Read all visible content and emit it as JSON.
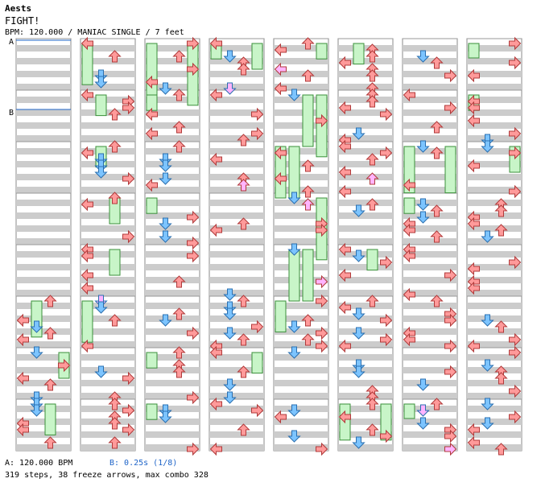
{
  "header": {
    "title": "Aests",
    "song": "FIGHT!",
    "info": "BPM: 120.000 / MANIAC SINGLE / 7 feet"
  },
  "markers": {
    "a": "A",
    "b": "B"
  },
  "footer": {
    "bpm_a": "A: 120.000 BPM",
    "bpm_b": "B: 0.25s (1/8)",
    "stats": "319 steps, 38 freeze arrows, max combo 328"
  },
  "colors": {
    "left": "#ff9a9a",
    "down": "#7cc4ff",
    "up": "#ff9a9a",
    "right": "#ff9a9a",
    "freeze": "#c8f5c8",
    "shock": "#ffb4ff",
    "stripe": "#cccccc",
    "marker": "#1e64c8"
  },
  "chart_data": {
    "type": "step-chart",
    "measures_per_column": 8,
    "columns": 8,
    "lanes": [
      "left",
      "down",
      "up",
      "right"
    ],
    "freezes": [
      {
        "col": 0,
        "measure": 5,
        "lane": 1,
        "len": 0.7
      },
      {
        "col": 0,
        "measure": 6,
        "lane": 3,
        "len": 0.5
      },
      {
        "col": 0,
        "measure": 7,
        "lane": 2,
        "len": 0.6
      },
      {
        "col": 1,
        "measure": 0,
        "lane": 0,
        "len": 0.8
      },
      {
        "col": 1,
        "measure": 1,
        "lane": 1,
        "len": 0.4
      },
      {
        "col": 1,
        "measure": 2,
        "lane": 1,
        "len": 0.4
      },
      {
        "col": 1,
        "measure": 3,
        "lane": 2,
        "len": 0.5
      },
      {
        "col": 1,
        "measure": 4,
        "lane": 2,
        "len": 0.5
      },
      {
        "col": 1,
        "measure": 5,
        "lane": 0,
        "len": 0.8
      },
      {
        "col": 2,
        "measure": 0,
        "lane": 0,
        "len": 1.2
      },
      {
        "col": 2,
        "measure": 0,
        "lane": 3,
        "len": 1.2
      },
      {
        "col": 2,
        "measure": 1,
        "lane": 0,
        "len": 0.3
      },
      {
        "col": 2,
        "measure": 3,
        "lane": 0,
        "len": 0.3
      },
      {
        "col": 2,
        "measure": 6,
        "lane": 0,
        "len": 0.3
      },
      {
        "col": 3,
        "measure": 0,
        "lane": 0,
        "len": 0.3
      },
      {
        "col": 3,
        "measure": 0,
        "lane": 3,
        "len": 0.5
      },
      {
        "col": 3,
        "measure": 6,
        "lane": 3,
        "len": 0.4
      },
      {
        "col": 4,
        "measure": 0,
        "lane": 3,
        "len": 0.3
      },
      {
        "col": 4,
        "measure": 1,
        "lane": 3,
        "len": 1.2
      },
      {
        "col": 4,
        "measure": 1,
        "lane": 2,
        "len": 1.0
      },
      {
        "col": 4,
        "measure": 2,
        "lane": 1,
        "len": 1.0
      },
      {
        "col": 4,
        "measure": 2,
        "lane": 0,
        "len": 1.0
      },
      {
        "col": 4,
        "measure": 3,
        "lane": 3,
        "len": 1.2
      },
      {
        "col": 4,
        "measure": 4,
        "lane": 1,
        "len": 1.0
      },
      {
        "col": 4,
        "measure": 4,
        "lane": 2,
        "len": 1.0
      },
      {
        "col": 4,
        "measure": 5,
        "lane": 0,
        "len": 0.6
      },
      {
        "col": 5,
        "measure": 0,
        "lane": 1,
        "len": 0.4
      },
      {
        "col": 5,
        "measure": 4,
        "lane": 2,
        "len": 0.4
      },
      {
        "col": 5,
        "measure": 7,
        "lane": 0,
        "len": 0.7
      },
      {
        "col": 5,
        "measure": 7,
        "lane": 3,
        "len": 0.7
      },
      {
        "col": 6,
        "measure": 2,
        "lane": 0,
        "len": 0.9
      },
      {
        "col": 6,
        "measure": 2,
        "lane": 3,
        "len": 0.9
      },
      {
        "col": 6,
        "measure": 3,
        "lane": 0,
        "len": 0.3
      },
      {
        "col": 6,
        "measure": 7,
        "lane": 0,
        "len": 0.2
      },
      {
        "col": 7,
        "measure": 0,
        "lane": 0,
        "len": 0.2
      },
      {
        "col": 7,
        "measure": 1,
        "lane": 0,
        "len": 0.3
      },
      {
        "col": 7,
        "measure": 2,
        "lane": 3,
        "len": 0.5
      },
      {
        "col": 2,
        "measure": 7,
        "lane": 0,
        "len": 0.3
      }
    ]
  }
}
